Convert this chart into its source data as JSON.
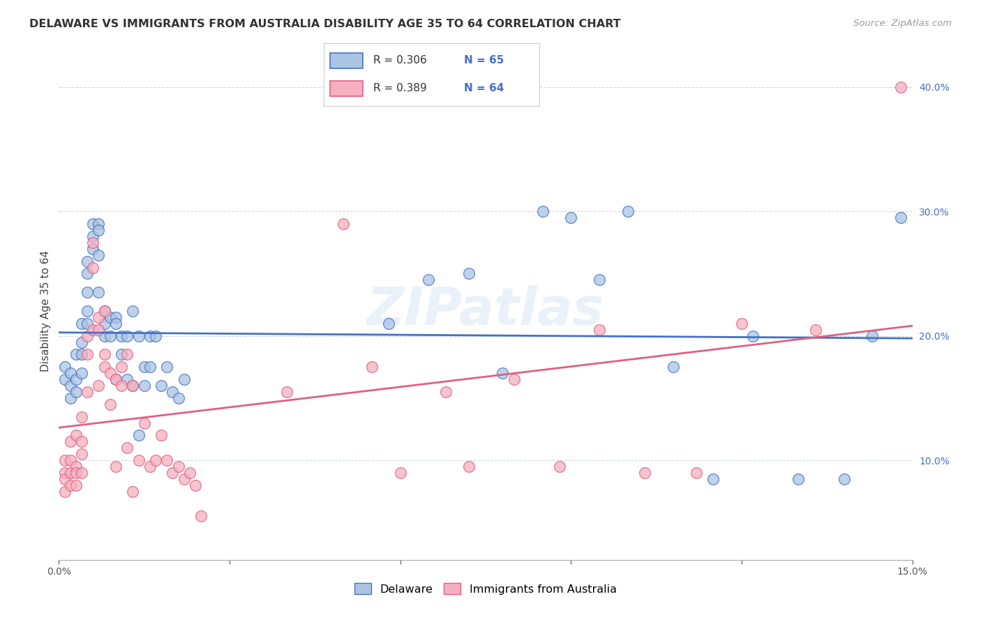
{
  "title": "DELAWARE VS IMMIGRANTS FROM AUSTRALIA DISABILITY AGE 35 TO 64 CORRELATION CHART",
  "source": "Source: ZipAtlas.com",
  "ylabel": "Disability Age 35 to 64",
  "legend_blue_label": "Delaware",
  "legend_pink_label": "Immigrants from Australia",
  "r_blue": 0.306,
  "n_blue": 65,
  "r_pink": 0.389,
  "n_pink": 64,
  "xlim": [
    0.0,
    0.15
  ],
  "ylim": [
    0.02,
    0.42
  ],
  "xticks": [
    0.0,
    0.03,
    0.06,
    0.09,
    0.12,
    0.15
  ],
  "xtick_labels": [
    "0.0%",
    "",
    "",
    "",
    "",
    "15.0%"
  ],
  "yticks": [
    0.1,
    0.2,
    0.3,
    0.4
  ],
  "ytick_labels": [
    "10.0%",
    "20.0%",
    "30.0%",
    "40.0%"
  ],
  "blue_color": "#aac4e2",
  "pink_color": "#f5afc0",
  "blue_line_color": "#4472c4",
  "pink_line_color": "#e06080",
  "bg_color": "#ffffff",
  "grid_color": "#d0d8e4",
  "blue_x": [
    0.001,
    0.001,
    0.002,
    0.002,
    0.002,
    0.003,
    0.003,
    0.003,
    0.004,
    0.004,
    0.004,
    0.004,
    0.005,
    0.005,
    0.005,
    0.005,
    0.005,
    0.006,
    0.006,
    0.006,
    0.007,
    0.007,
    0.007,
    0.007,
    0.008,
    0.008,
    0.008,
    0.009,
    0.009,
    0.01,
    0.01,
    0.01,
    0.011,
    0.011,
    0.012,
    0.012,
    0.013,
    0.013,
    0.014,
    0.014,
    0.015,
    0.015,
    0.016,
    0.016,
    0.017,
    0.018,
    0.019,
    0.02,
    0.021,
    0.022,
    0.058,
    0.065,
    0.072,
    0.078,
    0.085,
    0.09,
    0.095,
    0.1,
    0.108,
    0.115,
    0.122,
    0.13,
    0.138,
    0.143,
    0.148
  ],
  "blue_y": [
    0.175,
    0.165,
    0.17,
    0.16,
    0.15,
    0.185,
    0.165,
    0.155,
    0.21,
    0.195,
    0.185,
    0.17,
    0.26,
    0.25,
    0.235,
    0.22,
    0.21,
    0.29,
    0.28,
    0.27,
    0.29,
    0.285,
    0.265,
    0.235,
    0.22,
    0.21,
    0.2,
    0.215,
    0.2,
    0.215,
    0.21,
    0.165,
    0.2,
    0.185,
    0.2,
    0.165,
    0.22,
    0.16,
    0.2,
    0.12,
    0.175,
    0.16,
    0.2,
    0.175,
    0.2,
    0.16,
    0.175,
    0.155,
    0.15,
    0.165,
    0.21,
    0.245,
    0.25,
    0.17,
    0.3,
    0.295,
    0.245,
    0.3,
    0.175,
    0.085,
    0.2,
    0.085,
    0.085,
    0.2,
    0.295
  ],
  "pink_x": [
    0.001,
    0.001,
    0.001,
    0.001,
    0.002,
    0.002,
    0.002,
    0.002,
    0.003,
    0.003,
    0.003,
    0.003,
    0.004,
    0.004,
    0.004,
    0.004,
    0.005,
    0.005,
    0.005,
    0.006,
    0.006,
    0.006,
    0.007,
    0.007,
    0.007,
    0.008,
    0.008,
    0.008,
    0.009,
    0.009,
    0.01,
    0.01,
    0.011,
    0.011,
    0.012,
    0.012,
    0.013,
    0.013,
    0.014,
    0.015,
    0.016,
    0.017,
    0.018,
    0.019,
    0.02,
    0.021,
    0.022,
    0.023,
    0.024,
    0.025,
    0.04,
    0.05,
    0.055,
    0.06,
    0.068,
    0.072,
    0.08,
    0.088,
    0.095,
    0.103,
    0.112,
    0.12,
    0.133,
    0.148
  ],
  "pink_y": [
    0.1,
    0.09,
    0.085,
    0.075,
    0.115,
    0.1,
    0.09,
    0.08,
    0.12,
    0.095,
    0.09,
    0.08,
    0.135,
    0.115,
    0.105,
    0.09,
    0.2,
    0.185,
    0.155,
    0.275,
    0.255,
    0.205,
    0.215,
    0.205,
    0.16,
    0.22,
    0.185,
    0.175,
    0.17,
    0.145,
    0.165,
    0.095,
    0.175,
    0.16,
    0.185,
    0.11,
    0.16,
    0.075,
    0.1,
    0.13,
    0.095,
    0.1,
    0.12,
    0.1,
    0.09,
    0.095,
    0.085,
    0.09,
    0.08,
    0.055,
    0.155,
    0.29,
    0.175,
    0.09,
    0.155,
    0.095,
    0.165,
    0.095,
    0.205,
    0.09,
    0.09,
    0.21,
    0.205,
    0.4
  ]
}
